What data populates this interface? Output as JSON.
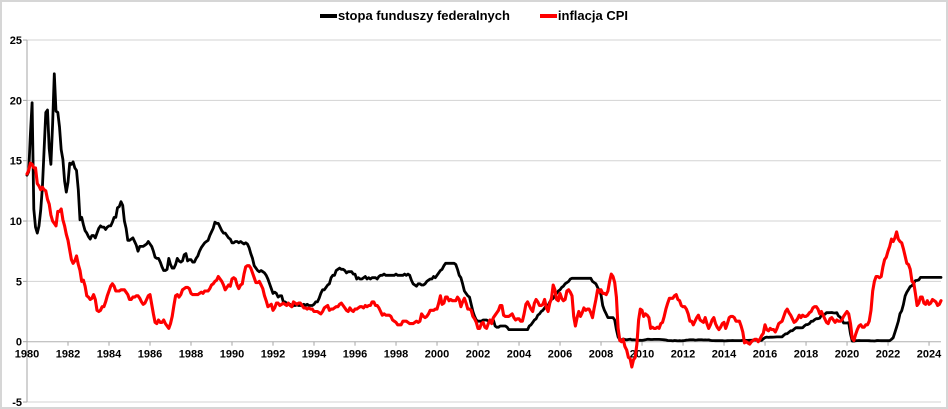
{
  "chart_data": {
    "type": "line",
    "title": "",
    "x_start": "1980-01",
    "x_end": "2024-08",
    "frequency": "monthly",
    "x_tick_labels": [
      "1980",
      "1982",
      "1984",
      "1986",
      "1988",
      "1990",
      "1992",
      "1994",
      "1996",
      "1998",
      "2000",
      "2002",
      "2004",
      "2006",
      "2008",
      "2010",
      "2012",
      "2014",
      "2016",
      "2018",
      "2020",
      "2022",
      "2024"
    ],
    "x_tick_start_year": 1980,
    "y_ticks": [
      -5,
      0,
      5,
      10,
      15,
      20,
      25
    ],
    "ylim": [
      -5,
      25
    ],
    "grid": "horizontal",
    "legend_position": "top-center",
    "colors": {
      "grid": "#d3d3d3",
      "zero_axis": "#b0b0b0",
      "axis": "#a6a6a6",
      "label": "#000000"
    },
    "series": [
      {
        "name": "stopa funduszy federalnych",
        "color": "#000000",
        "values": [
          13.8,
          14.1,
          17.2,
          19.8,
          11.0,
          9.5,
          9.0,
          9.6,
          10.9,
          12.8,
          15.9,
          19.0,
          19.2,
          16.0,
          14.7,
          18.0,
          22.2,
          19.1,
          19.0,
          17.8,
          15.9,
          15.1,
          13.3,
          12.4,
          13.2,
          14.8,
          14.7,
          14.9,
          14.4,
          14.2,
          12.6,
          10.1,
          10.3,
          9.7,
          9.2,
          9.0,
          8.7,
          8.5,
          8.8,
          8.8,
          8.6,
          9.0,
          9.4,
          9.6,
          9.5,
          9.5,
          9.3,
          9.5,
          9.6,
          9.6,
          9.9,
          10.3,
          10.3,
          11.1,
          11.2,
          11.6,
          11.3,
          10.0,
          9.4,
          8.4,
          8.4,
          8.5,
          8.6,
          8.3,
          8.0,
          7.5,
          7.9,
          7.9,
          7.9,
          8.0,
          8.1,
          8.3,
          8.1,
          7.9,
          7.5,
          7.0,
          6.9,
          6.9,
          6.6,
          6.2,
          5.9,
          5.9,
          6.0,
          6.9,
          6.4,
          6.1,
          6.1,
          6.4,
          6.9,
          6.7,
          6.6,
          6.7,
          7.2,
          7.3,
          6.7,
          6.8,
          6.8,
          6.6,
          6.6,
          6.9,
          7.1,
          7.5,
          7.8,
          8.0,
          8.2,
          8.3,
          8.4,
          8.8,
          9.1,
          9.4,
          9.9,
          9.8,
          9.8,
          9.5,
          9.2,
          9.0,
          9.0,
          8.8,
          8.6,
          8.5,
          8.2,
          8.2,
          8.3,
          8.3,
          8.2,
          8.3,
          8.2,
          8.1,
          8.2,
          8.1,
          7.8,
          7.3,
          6.9,
          6.3,
          6.1,
          5.9,
          5.8,
          5.9,
          5.8,
          5.7,
          5.5,
          5.2,
          4.8,
          4.4,
          4.0,
          4.1,
          4.0,
          3.7,
          3.8,
          3.8,
          3.3,
          3.3,
          3.2,
          3.1,
          3.1,
          2.9,
          3.0,
          3.0,
          3.1,
          3.0,
          3.0,
          3.0,
          3.1,
          3.0,
          3.1,
          3.0,
          3.0,
          3.0,
          3.1,
          3.3,
          3.3,
          3.6,
          4.0,
          4.3,
          4.3,
          4.5,
          4.7,
          4.8,
          5.3,
          5.5,
          5.5,
          5.9,
          6.0,
          6.1,
          6.0,
          6.0,
          5.9,
          5.7,
          5.8,
          5.8,
          5.8,
          5.6,
          5.6,
          5.2,
          5.3,
          5.2,
          5.2,
          5.3,
          5.4,
          5.2,
          5.3,
          5.2,
          5.3,
          5.3,
          5.3,
          5.2,
          5.4,
          5.5,
          5.5,
          5.6,
          5.5,
          5.5,
          5.5,
          5.5,
          5.5,
          5.5,
          5.6,
          5.5,
          5.5,
          5.5,
          5.5,
          5.6,
          5.5,
          5.6,
          5.5,
          5.1,
          4.8,
          4.7,
          4.6,
          4.8,
          4.8,
          4.7,
          4.7,
          4.8,
          5.0,
          5.1,
          5.2,
          5.2,
          5.4,
          5.3,
          5.5,
          5.7,
          5.9,
          6.0,
          6.3,
          6.5,
          6.5,
          6.5,
          6.5,
          6.5,
          6.5,
          6.4,
          6.0,
          5.5,
          5.3,
          4.8,
          4.2,
          4.0,
          3.8,
          3.7,
          3.1,
          2.5,
          2.1,
          1.8,
          1.7,
          1.7,
          1.7,
          1.8,
          1.8,
          1.8,
          1.7,
          1.7,
          1.8,
          1.8,
          1.3,
          1.2,
          1.2,
          1.3,
          1.3,
          1.3,
          1.3,
          1.2,
          1.0,
          1.0,
          1.0,
          1.0,
          1.0,
          1.0,
          1.0,
          1.0,
          1.0,
          1.0,
          1.0,
          1.0,
          1.3,
          1.4,
          1.6,
          1.8,
          1.9,
          2.2,
          2.3,
          2.5,
          2.6,
          2.8,
          3.0,
          3.0,
          3.3,
          3.5,
          3.6,
          3.8,
          4.0,
          4.2,
          4.3,
          4.5,
          4.6,
          4.8,
          4.9,
          5.0,
          5.2,
          5.25,
          5.25,
          5.25,
          5.25,
          5.25,
          5.25,
          5.25,
          5.25,
          5.25,
          5.25,
          5.25,
          5.25,
          5.0,
          4.9,
          4.8,
          4.5,
          4.2,
          3.9,
          3.0,
          2.6,
          2.3,
          2.0,
          2.0,
          2.0,
          2.0,
          1.8,
          1.0,
          0.4,
          0.16,
          0.15,
          0.22,
          0.18,
          0.15,
          0.18,
          0.21,
          0.16,
          0.16,
          0.15,
          0.12,
          0.12,
          0.12,
          0.11,
          0.13,
          0.16,
          0.2,
          0.2,
          0.18,
          0.18,
          0.19,
          0.19,
          0.19,
          0.19,
          0.18,
          0.17,
          0.16,
          0.14,
          0.1,
          0.09,
          0.09,
          0.07,
          0.1,
          0.08,
          0.07,
          0.08,
          0.07,
          0.08,
          0.1,
          0.13,
          0.14,
          0.16,
          0.16,
          0.16,
          0.13,
          0.14,
          0.16,
          0.16,
          0.16,
          0.14,
          0.15,
          0.14,
          0.15,
          0.11,
          0.09,
          0.09,
          0.08,
          0.08,
          0.09,
          0.08,
          0.09,
          0.07,
          0.07,
          0.08,
          0.09,
          0.09,
          0.1,
          0.09,
          0.09,
          0.09,
          0.09,
          0.09,
          0.12,
          0.11,
          0.11,
          0.11,
          0.12,
          0.12,
          0.13,
          0.13,
          0.14,
          0.14,
          0.12,
          0.12,
          0.24,
          0.34,
          0.38,
          0.36,
          0.37,
          0.37,
          0.38,
          0.39,
          0.4,
          0.4,
          0.4,
          0.41,
          0.54,
          0.65,
          0.66,
          0.79,
          0.9,
          0.91,
          1.04,
          1.15,
          1.16,
          1.15,
          1.15,
          1.16,
          1.3,
          1.41,
          1.42,
          1.51,
          1.69,
          1.7,
          1.82,
          1.91,
          1.91,
          1.95,
          2.19,
          2.2,
          2.27,
          2.4,
          2.4,
          2.41,
          2.42,
          2.39,
          2.38,
          2.4,
          2.13,
          2.04,
          1.83,
          1.55,
          1.55,
          1.55,
          1.58,
          0.65,
          0.05,
          0.05,
          0.08,
          0.09,
          0.1,
          0.09,
          0.09,
          0.09,
          0.09,
          0.09,
          0.08,
          0.07,
          0.07,
          0.06,
          0.08,
          0.1,
          0.09,
          0.08,
          0.08,
          0.08,
          0.08,
          0.08,
          0.08,
          0.2,
          0.33,
          0.77,
          1.21,
          1.68,
          2.33,
          2.56,
          3.08,
          3.78,
          4.1,
          4.33,
          4.57,
          4.65,
          4.83,
          5.06,
          5.08,
          5.12,
          5.33,
          5.33,
          5.33,
          5.33,
          5.33,
          5.33,
          5.33,
          5.33,
          5.33,
          5.33,
          5.33,
          5.33,
          5.33
        ]
      },
      {
        "name": "inflacja CPI",
        "color": "#ff0000",
        "values": [
          13.9,
          14.2,
          14.8,
          14.7,
          14.4,
          14.4,
          13.1,
          12.9,
          12.6,
          12.8,
          12.6,
          12.5,
          11.8,
          11.4,
          10.5,
          10.0,
          9.8,
          9.6,
          10.8,
          10.8,
          11.0,
          10.1,
          9.6,
          8.9,
          8.4,
          7.6,
          6.8,
          6.5,
          6.7,
          7.1,
          6.4,
          5.9,
          5.0,
          5.1,
          4.6,
          3.8,
          3.7,
          3.5,
          3.6,
          3.9,
          3.5,
          2.6,
          2.5,
          2.6,
          2.9,
          2.9,
          3.3,
          3.8,
          4.2,
          4.6,
          4.8,
          4.6,
          4.2,
          4.2,
          4.2,
          4.3,
          4.3,
          4.3,
          4.1,
          3.9,
          3.5,
          3.5,
          3.7,
          3.7,
          3.8,
          3.8,
          3.6,
          3.3,
          3.1,
          3.2,
          3.5,
          3.8,
          3.9,
          3.1,
          2.3,
          1.6,
          1.5,
          1.8,
          1.6,
          1.6,
          1.8,
          1.5,
          1.3,
          1.1,
          1.5,
          2.1,
          3.0,
          3.8,
          3.9,
          3.7,
          3.9,
          4.3,
          4.4,
          4.5,
          4.5,
          4.4,
          4.0,
          3.9,
          3.9,
          3.9,
          3.9,
          4.0,
          4.1,
          4.0,
          4.2,
          4.2,
          4.2,
          4.4,
          4.7,
          4.8,
          5.0,
          5.1,
          5.4,
          5.2,
          5.0,
          4.7,
          4.3,
          4.5,
          4.7,
          4.6,
          5.2,
          5.3,
          5.2,
          4.7,
          4.4,
          4.7,
          4.8,
          5.6,
          6.2,
          6.3,
          6.3,
          6.1,
          5.7,
          5.3,
          4.9,
          4.9,
          5.0,
          4.7,
          4.4,
          3.8,
          3.4,
          2.9,
          3.0,
          3.1,
          2.6,
          2.8,
          3.2,
          3.2,
          3.0,
          3.1,
          3.2,
          3.1,
          3.0,
          3.2,
          3.0,
          2.9,
          3.3,
          3.2,
          3.1,
          3.2,
          3.2,
          3.0,
          2.8,
          2.8,
          2.7,
          2.8,
          2.7,
          2.7,
          2.5,
          2.5,
          2.5,
          2.4,
          2.3,
          2.5,
          2.8,
          2.9,
          3.0,
          2.6,
          2.7,
          2.7,
          2.8,
          2.9,
          2.9,
          3.1,
          3.2,
          3.0,
          2.8,
          2.6,
          2.5,
          2.8,
          2.6,
          2.5,
          2.7,
          2.7,
          2.8,
          2.9,
          2.9,
          2.8,
          3.0,
          2.9,
          3.0,
          3.0,
          3.3,
          3.3,
          3.0,
          3.0,
          2.8,
          2.5,
          2.2,
          2.3,
          2.2,
          2.2,
          2.2,
          2.1,
          1.8,
          1.7,
          1.6,
          1.4,
          1.4,
          1.4,
          1.7,
          1.7,
          1.7,
          1.6,
          1.5,
          1.5,
          1.5,
          1.6,
          1.7,
          1.6,
          1.7,
          2.3,
          2.1,
          2.0,
          2.1,
          2.3,
          2.6,
          2.6,
          2.6,
          2.7,
          2.7,
          3.2,
          3.8,
          3.1,
          3.2,
          3.7,
          3.7,
          3.4,
          3.5,
          3.4,
          3.4,
          3.4,
          3.7,
          3.5,
          2.9,
          3.3,
          3.6,
          3.2,
          2.7,
          2.7,
          2.6,
          2.1,
          1.9,
          1.6,
          1.1,
          1.1,
          1.5,
          1.6,
          1.2,
          1.1,
          1.5,
          1.8,
          1.5,
          2.0,
          2.2,
          2.4,
          2.6,
          3.0,
          3.0,
          2.2,
          2.1,
          2.1,
          2.1,
          2.2,
          2.3,
          2.0,
          1.8,
          1.9,
          1.9,
          1.7,
          1.7,
          2.3,
          3.1,
          3.3,
          3.0,
          2.7,
          2.5,
          3.2,
          3.5,
          3.3,
          3.0,
          3.0,
          3.1,
          3.5,
          2.8,
          2.5,
          3.2,
          3.6,
          4.7,
          4.3,
          3.5,
          3.4,
          4.0,
          3.6,
          3.4,
          3.5,
          4.2,
          4.3,
          4.1,
          3.8,
          2.1,
          1.3,
          2.0,
          2.5,
          2.1,
          2.4,
          2.8,
          2.6,
          2.7,
          2.7,
          2.4,
          2.0,
          2.8,
          3.5,
          4.3,
          4.1,
          4.3,
          4.0,
          4.0,
          3.9,
          4.2,
          5.0,
          5.6,
          5.4,
          4.9,
          3.7,
          1.1,
          0.1,
          0.0,
          0.2,
          -0.4,
          -0.7,
          -1.3,
          -1.4,
          -2.1,
          -1.5,
          -1.3,
          -0.2,
          1.8,
          2.7,
          2.6,
          2.1,
          2.3,
          2.2,
          2.0,
          1.1,
          1.2,
          1.1,
          1.1,
          1.2,
          1.1,
          1.5,
          1.6,
          2.1,
          2.7,
          3.2,
          3.6,
          3.6,
          3.6,
          3.8,
          3.9,
          3.5,
          3.4,
          3.0,
          2.9,
          2.9,
          2.7,
          2.3,
          1.7,
          1.7,
          1.4,
          1.7,
          2.0,
          2.2,
          1.8,
          1.7,
          1.6,
          2.0,
          1.5,
          1.1,
          1.4,
          1.8,
          2.0,
          1.5,
          1.2,
          1.0,
          1.2,
          1.5,
          1.6,
          1.1,
          1.5,
          2.0,
          2.1,
          2.1,
          2.0,
          1.7,
          1.7,
          1.7,
          1.3,
          0.8,
          -0.1,
          0.0,
          -0.1,
          -0.2,
          0.0,
          0.1,
          0.2,
          0.2,
          0.0,
          0.2,
          0.5,
          0.7,
          1.4,
          1.0,
          0.9,
          1.1,
          1.0,
          1.0,
          0.8,
          1.1,
          1.5,
          1.6,
          1.7,
          2.1,
          2.5,
          2.7,
          2.4,
          2.2,
          1.9,
          1.6,
          1.7,
          1.9,
          2.2,
          2.0,
          2.2,
          2.1,
          2.1,
          2.2,
          2.4,
          2.5,
          2.8,
          2.9,
          2.9,
          2.7,
          2.3,
          2.5,
          2.2,
          1.9,
          1.6,
          1.5,
          1.9,
          2.0,
          1.8,
          1.6,
          1.8,
          1.7,
          1.7,
          1.8,
          2.1,
          2.3,
          2.5,
          2.3,
          1.5,
          0.3,
          0.1,
          0.6,
          1.0,
          1.3,
          1.4,
          1.2,
          1.2,
          1.4,
          1.4,
          1.7,
          2.6,
          4.2,
          5.0,
          5.4,
          5.4,
          5.3,
          5.4,
          6.2,
          6.8,
          7.0,
          7.5,
          7.9,
          8.5,
          8.3,
          8.6,
          9.1,
          8.5,
          8.3,
          8.2,
          7.7,
          7.1,
          6.5,
          6.4,
          6.0,
          5.0,
          4.9,
          4.0,
          3.0,
          3.2,
          3.7,
          3.7,
          3.2,
          3.1,
          3.4,
          3.1,
          3.2,
          3.5,
          3.4,
          3.3,
          3.0,
          3.1,
          3.4
        ]
      }
    ]
  }
}
